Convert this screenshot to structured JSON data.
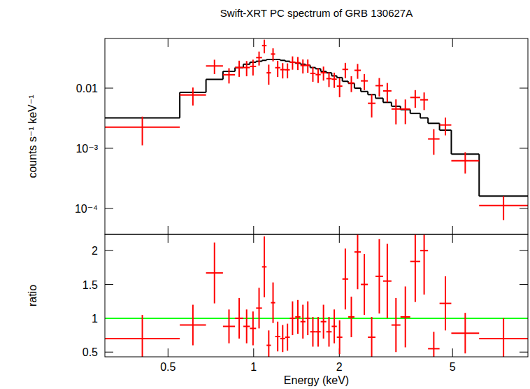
{
  "chart_data": [
    {
      "type": "step",
      "title": "Swift-XRT PC spectrum of GRB 130627A",
      "y_label": "counts s⁻¹ keV⁻¹",
      "log": true,
      "xlim": [
        0.3,
        9.2
      ],
      "ylim": [
        3.7e-05,
        0.067
      ],
      "xticks": [
        0.5,
        1,
        2,
        5
      ],
      "yticks": [
        {
          "value": 0.0001,
          "label": "10⁻⁴"
        },
        {
          "value": 0.001,
          "label": "10⁻³"
        },
        0.01
      ],
      "tick_labels": "y",
      "bins": [
        0.3,
        0.55,
        0.68,
        0.78,
        0.86,
        0.92,
        0.97,
        1.02,
        1.07,
        1.11,
        1.15,
        1.19,
        1.24,
        1.29,
        1.34,
        1.4,
        1.46,
        1.52,
        1.58,
        1.65,
        1.72,
        1.8,
        1.88,
        1.96,
        2.05,
        2.15,
        2.26,
        2.38,
        2.52,
        2.68,
        2.85,
        3.05,
        3.28,
        3.55,
        3.85,
        4.1,
        4.5,
        4.95,
        6.2,
        9.2
      ],
      "series": [
        {
          "type": "step",
          "color": "#000000",
          "values": [
            0.0032,
            0.0085,
            0.014,
            0.019,
            0.022,
            0.025,
            0.027,
            0.028,
            0.029,
            0.03,
            0.03,
            0.03,
            0.029,
            0.028,
            0.027,
            0.026,
            0.025,
            0.024,
            0.022,
            0.021,
            0.019,
            0.018,
            0.016,
            0.015,
            0.013,
            0.012,
            0.01,
            0.0088,
            0.0078,
            0.0068,
            0.0058,
            0.005,
            0.0044,
            0.0038,
            0.0032,
            0.0026,
            0.002,
            0.0008,
            0.00016
          ]
        },
        {
          "type": "errorbar",
          "color": "#ff0000",
          "values": [
            0.00224,
            0.0077,
            0.0234,
            0.0167,
            0.022,
            0.022,
            0.023,
            0.0322,
            0.051,
            0.018,
            0.0369,
            0.0219,
            0.0203,
            0.0202,
            0.027,
            0.0265,
            0.0238,
            0.024,
            0.0176,
            0.0168,
            0.0181,
            0.0144,
            0.0141,
            0.0108,
            0.0205,
            0.0122,
            0.0198,
            0.0132,
            0.0056,
            0.011,
            0.009,
            0.0045,
            0.0045,
            0.007,
            0.0064,
            0.00143,
            0.00244,
            0.00062,
            0.000112
          ],
          "errors": [
            0.00112,
            0.00255,
            0.0063,
            0.00475,
            0.0066,
            0.00625,
            0.00675,
            0.0084,
            0.01305,
            0.0066,
            0.009,
            0.0066,
            0.0058,
            0.0056,
            0.00675,
            0.0065,
            0.00625,
            0.006,
            0.00484,
            0.00462,
            0.00475,
            0.00396,
            0.004,
            0.00375,
            0.00585,
            0.0036,
            0.0055,
            0.00396,
            0.00234,
            0.00374,
            0.00319,
            0.002,
            0.00198,
            0.00228,
            0.00208,
            0.00065,
            0.0008,
            0.00024,
            4.8e-05
          ]
        }
      ]
    },
    {
      "type": "errorbar",
      "x_label": "Energy (keV)",
      "y_label": "ratio",
      "log": "x",
      "xlim": [
        0.3,
        9.2
      ],
      "ylim": [
        0.43,
        2.24
      ],
      "xticks": [
        0.5,
        1,
        2,
        5
      ],
      "yticks": [
        0.5,
        1,
        1.5,
        2
      ],
      "bins": [
        0.3,
        0.55,
        0.68,
        0.78,
        0.86,
        0.92,
        0.97,
        1.02,
        1.07,
        1.11,
        1.15,
        1.19,
        1.24,
        1.29,
        1.34,
        1.4,
        1.46,
        1.52,
        1.58,
        1.65,
        1.72,
        1.8,
        1.88,
        1.96,
        2.05,
        2.15,
        2.26,
        2.38,
        2.52,
        2.68,
        2.85,
        3.05,
        3.28,
        3.55,
        3.85,
        4.1,
        4.5,
        4.95,
        6.2,
        9.2
      ],
      "reference": {
        "value": 1,
        "color": "#00ff00"
      },
      "series": [
        {
          "type": "errorbar",
          "color": "#ff0000",
          "values": [
            0.7,
            0.9,
            1.67,
            0.88,
            1.0,
            0.88,
            0.85,
            1.15,
            1.76,
            0.6,
            1.23,
            0.73,
            0.7,
            0.72,
            1.0,
            1.02,
            0.95,
            1.0,
            0.8,
            0.8,
            0.95,
            0.8,
            0.88,
            0.72,
            1.58,
            1.02,
            1.98,
            1.5,
            0.72,
            1.62,
            1.55,
            0.9,
            1.02,
            1.84,
            2.0,
            0.55,
            1.22,
            0.78,
            0.7
          ],
          "errors": [
            0.35,
            0.3,
            0.45,
            0.25,
            0.3,
            0.25,
            0.25,
            0.3,
            0.45,
            0.22,
            0.3,
            0.22,
            0.2,
            0.2,
            0.25,
            0.25,
            0.25,
            0.25,
            0.22,
            0.22,
            0.25,
            0.22,
            0.25,
            0.25,
            0.45,
            0.3,
            0.55,
            0.45,
            0.3,
            0.55,
            0.55,
            0.4,
            0.45,
            0.6,
            0.65,
            0.25,
            0.4,
            0.3,
            0.3
          ]
        }
      ]
    }
  ]
}
